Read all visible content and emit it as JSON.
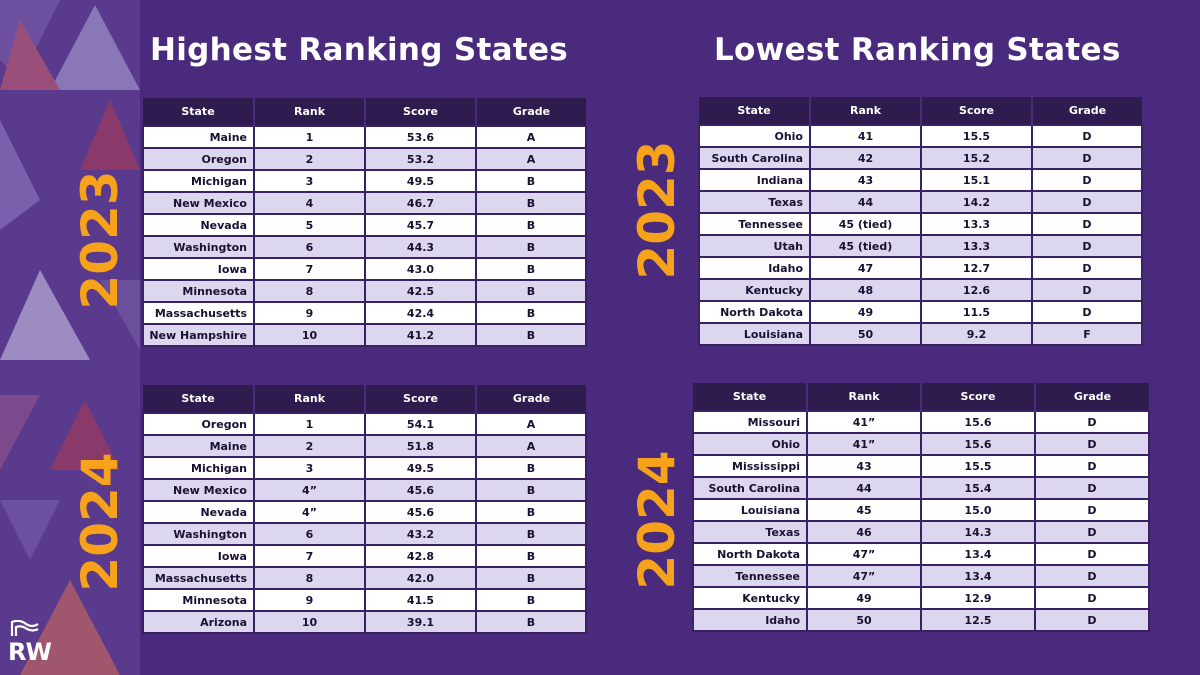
{
  "headings": {
    "highest": "Highest Ranking States",
    "lowest": "Lowest Ranking States"
  },
  "years": {
    "y2023": "2023",
    "y2024": "2024"
  },
  "columns": [
    "State",
    "Rank",
    "Score",
    "Grade"
  ],
  "colors": {
    "background": "#4a2a7c",
    "year_accent": "#f7a21b",
    "header_bg": "#2e1c4f",
    "row_alt": "#dcd6ee"
  },
  "logo": {
    "text": "RW"
  },
  "tables": {
    "high_2023": [
      [
        "Maine",
        "1",
        "53.6",
        "A"
      ],
      [
        "Oregon",
        "2",
        "53.2",
        "A"
      ],
      [
        "Michigan",
        "3",
        "49.5",
        "B"
      ],
      [
        "New Mexico",
        "4",
        "46.7",
        "B"
      ],
      [
        "Nevada",
        "5",
        "45.7",
        "B"
      ],
      [
        "Washington",
        "6",
        "44.3",
        "B"
      ],
      [
        "Iowa",
        "7",
        "43.0",
        "B"
      ],
      [
        "Minnesota",
        "8",
        "42.5",
        "B"
      ],
      [
        "Massachusetts",
        "9",
        "42.4",
        "B"
      ],
      [
        "New Hampshire",
        "10",
        "41.2",
        "B"
      ]
    ],
    "high_2024": [
      [
        "Oregon",
        "1",
        "54.1",
        "A"
      ],
      [
        "Maine",
        "2",
        "51.8",
        "A"
      ],
      [
        "Michigan",
        "3",
        "49.5",
        "B"
      ],
      [
        "New Mexico",
        "4”",
        "45.6",
        "B"
      ],
      [
        "Nevada",
        "4”",
        "45.6",
        "B"
      ],
      [
        "Washington",
        "6",
        "43.2",
        "B"
      ],
      [
        "Iowa",
        "7",
        "42.8",
        "B"
      ],
      [
        "Massachusetts",
        "8",
        "42.0",
        "B"
      ],
      [
        "Minnesota",
        "9",
        "41.5",
        "B"
      ],
      [
        "Arizona",
        "10",
        "39.1",
        "B"
      ]
    ],
    "low_2023": [
      [
        "Ohio",
        "41",
        "15.5",
        "D"
      ],
      [
        "South Carolina",
        "42",
        "15.2",
        "D"
      ],
      [
        "Indiana",
        "43",
        "15.1",
        "D"
      ],
      [
        "Texas",
        "44",
        "14.2",
        "D"
      ],
      [
        "Tennessee",
        "45 (tied)",
        "13.3",
        "D"
      ],
      [
        "Utah",
        "45 (tied)",
        "13.3",
        "D"
      ],
      [
        "Idaho",
        "47",
        "12.7",
        "D"
      ],
      [
        "Kentucky",
        "48",
        "12.6",
        "D"
      ],
      [
        "North Dakota",
        "49",
        "11.5",
        "D"
      ],
      [
        "Louisiana",
        "50",
        "9.2",
        "F"
      ]
    ],
    "low_2024": [
      [
        "Missouri",
        "41”",
        "15.6",
        "D"
      ],
      [
        "Ohio",
        "41”",
        "15.6",
        "D"
      ],
      [
        "Mississippi",
        "43",
        "15.5",
        "D"
      ],
      [
        "South Carolina",
        "44",
        "15.4",
        "D"
      ],
      [
        "Louisiana",
        "45",
        "15.0",
        "D"
      ],
      [
        "Texas",
        "46",
        "14.3",
        "D"
      ],
      [
        "North Dakota",
        "47”",
        "13.4",
        "D"
      ],
      [
        "Tennessee",
        "47”",
        "13.4",
        "D"
      ],
      [
        "Kentucky",
        "49",
        "12.9",
        "D"
      ],
      [
        "Idaho",
        "50",
        "12.5",
        "D"
      ]
    ]
  }
}
